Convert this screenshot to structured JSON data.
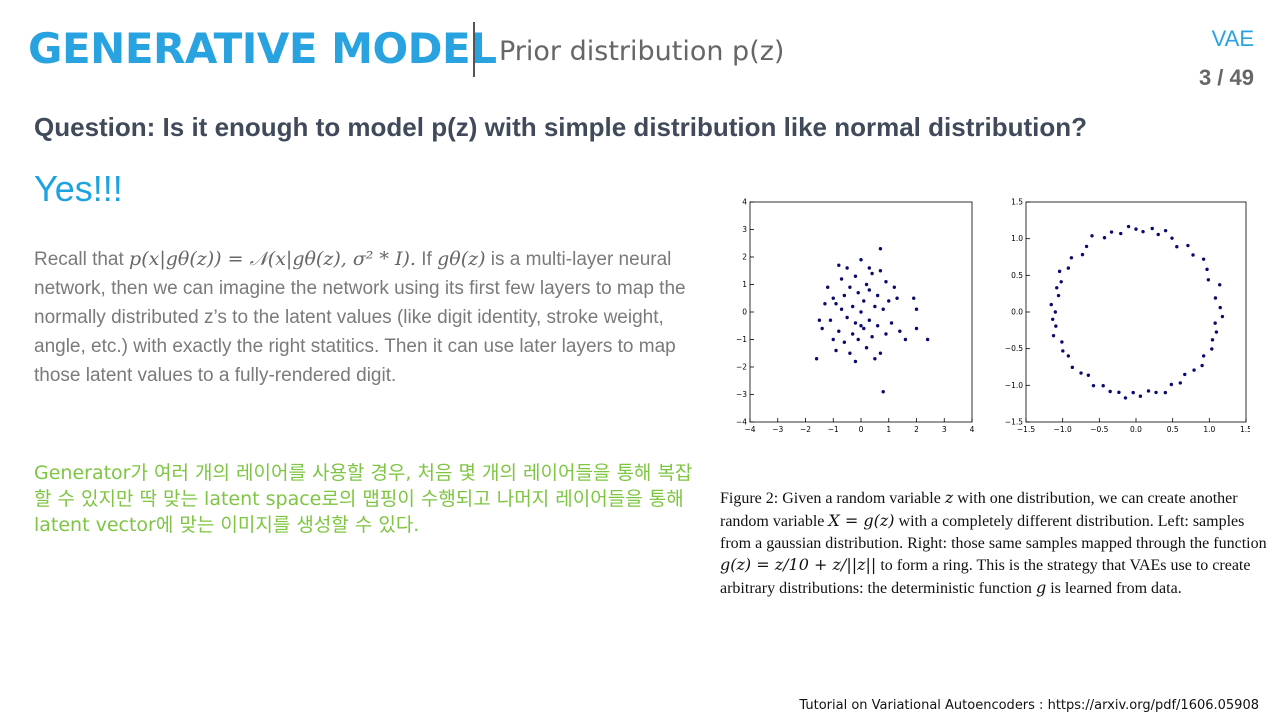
{
  "header": {
    "title": "GENERATIVE MODEL",
    "subtitle": "Prior distribution p(z)",
    "tag": "VAE",
    "page": "3 / 49"
  },
  "body": {
    "question": "Question: Is it enough to model p(z) with simple distribution like normal distribution?",
    "answer": "Yes!!!",
    "recall_prefix": "Recall that ",
    "recall_math1": "p(x|gθ(z)) = 𝒩(x|gθ(z), σ² * I).",
    "recall_if": " If ",
    "recall_math2": "gθ(z)",
    "recall_rest": " is a multi-layer neural network, then we can imagine the network using its first few layers to map the normally distributed z’s to the latent values (like digit identity, stroke weight, angle, etc.) with exactly the right statitics. Then it can use later layers to map those latent values to a fully-rendered digit.",
    "korean": "Generator가 여러 개의 레이어를 사용할 경우, 처음 몇 개의 레이어들을 통해 복잡할 수 있지만 딱 맞는 latent space로의 맵핑이 수행되고 나머지 레이어들을 통해 latent vector에 맞는 이미지를 생성할 수 있다."
  },
  "figure": {
    "caption_p1": "Figure 2: Given a random variable ",
    "caption_z": "z",
    "caption_p2": " with one distribution, we can create another random variable ",
    "caption_Xg": "X = g(z)",
    "caption_p3": " with a completely different distribution. Left: samples from a gaussian distribution. Right: those same samples mapped through the function ",
    "caption_fn": "g(z) = z/10 + z/||z||",
    "caption_p4": " to form a ring. This is the strategy that VAEs use to create arbitrary distributions: the deterministic function ",
    "caption_g": "g",
    "caption_p5": " is learned from data."
  },
  "chart_data": [
    {
      "type": "scatter",
      "title": "",
      "xlim": [
        -4,
        4
      ],
      "ylim": [
        -4,
        4
      ],
      "x_ticks": [
        -4,
        -3,
        -2,
        -1,
        0,
        1,
        2,
        3,
        4
      ],
      "y_ticks": [
        -4,
        -3,
        -2,
        -1,
        0,
        1,
        2,
        3,
        4
      ],
      "x_tick_labels": [
        "−4",
        "−3",
        "−2",
        "−1",
        "0",
        "1",
        "2",
        "3",
        "4"
      ],
      "y_tick_labels": [
        "−4",
        "−3",
        "−2",
        "−1",
        "0",
        "1",
        "2",
        "3",
        "4"
      ],
      "point_color": "#0a0a6e",
      "points": [
        [
          -1.6,
          -1.7
        ],
        [
          -1.4,
          -0.6
        ],
        [
          -1.3,
          0.3
        ],
        [
          -1.2,
          0.9
        ],
        [
          -1.1,
          -0.3
        ],
        [
          -1.0,
          0.5
        ],
        [
          -0.9,
          -1.4
        ],
        [
          -0.8,
          1.7
        ],
        [
          -0.8,
          -0.7
        ],
        [
          -0.7,
          0.1
        ],
        [
          -0.7,
          1.2
        ],
        [
          -0.6,
          -1.1
        ],
        [
          -0.6,
          0.6
        ],
        [
          -0.5,
          -0.2
        ],
        [
          -0.5,
          1.6
        ],
        [
          -0.4,
          -1.5
        ],
        [
          -0.4,
          0.9
        ],
        [
          -0.3,
          0.2
        ],
        [
          -0.3,
          -0.8
        ],
        [
          -0.2,
          1.3
        ],
        [
          -0.2,
          -0.4
        ],
        [
          -0.1,
          0.7
        ],
        [
          -0.1,
          -1.0
        ],
        [
          0.0,
          0.0
        ],
        [
          0.0,
          1.9
        ],
        [
          0.1,
          -0.6
        ],
        [
          0.1,
          0.4
        ],
        [
          0.2,
          -1.3
        ],
        [
          0.2,
          1.0
        ],
        [
          0.3,
          -0.3
        ],
        [
          0.3,
          0.8
        ],
        [
          0.4,
          -0.9
        ],
        [
          0.4,
          1.4
        ],
        [
          0.5,
          0.2
        ],
        [
          0.5,
          -1.7
        ],
        [
          0.6,
          0.6
        ],
        [
          0.6,
          -0.5
        ],
        [
          0.7,
          2.3
        ],
        [
          0.7,
          1.5
        ],
        [
          0.7,
          -1.5
        ],
        [
          0.8,
          0.1
        ],
        [
          0.8,
          -2.9
        ],
        [
          0.9,
          1.1
        ],
        [
          0.9,
          -0.8
        ],
        [
          1.0,
          0.4
        ],
        [
          1.1,
          -0.4
        ],
        [
          1.2,
          0.9
        ],
        [
          1.4,
          -0.7
        ],
        [
          1.6,
          -1.0
        ],
        [
          1.9,
          0.5
        ],
        [
          2.0,
          -0.6
        ],
        [
          2.0,
          0.1
        ],
        [
          2.4,
          -1.0
        ],
        [
          -1.5,
          -0.3
        ],
        [
          -0.9,
          0.3
        ],
        [
          -0.2,
          -1.8
        ],
        [
          0.3,
          1.6
        ],
        [
          1.3,
          0.5
        ],
        [
          -1.0,
          -1.0
        ],
        [
          0.0,
          -0.5
        ]
      ]
    },
    {
      "type": "scatter",
      "title": "",
      "xlim": [
        -1.5,
        1.5
      ],
      "ylim": [
        -1.5,
        1.5
      ],
      "x_ticks": [
        -1.5,
        -1.0,
        -0.5,
        0.0,
        0.5,
        1.0,
        1.5
      ],
      "y_ticks": [
        -1.5,
        -1.0,
        -0.5,
        0.0,
        0.5,
        1.0,
        1.5
      ],
      "x_tick_labels": [
        "−1.5",
        "−1.0",
        "−0.5",
        "0.0",
        "0.5",
        "1.0",
        "1.5"
      ],
      "y_tick_labels": [
        "−1.5",
        "−1.0",
        "−0.5",
        "0.0",
        "0.5",
        "1.0",
        "1.5"
      ],
      "point_color": "#0a0a6e",
      "ring_angles_deg": [
        3,
        10,
        18,
        24,
        31,
        38,
        45,
        52,
        58,
        64,
        70,
        74,
        79,
        85,
        90,
        95,
        101,
        107,
        113,
        120,
        127,
        133,
        140,
        147,
        152,
        158,
        163,
        168,
        175,
        180,
        185,
        190,
        196,
        202,
        208,
        213,
        221,
        228,
        233,
        240,
        246,
        252,
        258,
        263,
        268,
        273,
        279,
        284,
        290,
        296,
        302,
        308,
        315,
        321,
        327,
        334,
        340,
        346,
        352,
        357
      ],
      "ring_radii": [
        1.15,
        1.1,
        1.2,
        1.08,
        1.13,
        1.17,
        1.1,
        1.15,
        1.05,
        1.12,
        1.18,
        1.1,
        1.16,
        1.1,
        1.13,
        1.17,
        1.09,
        1.14,
        1.1,
        1.2,
        1.12,
        1.07,
        1.15,
        1.1,
        1.18,
        1.1,
        1.13,
        1.08,
        1.16,
        1.1,
        1.14,
        1.11,
        1.17,
        1.09,
        1.13,
        1.1,
        1.15,
        1.12,
        1.08,
        1.16,
        1.1,
        1.14,
        1.12,
        1.18,
        1.1,
        1.15,
        1.09,
        1.13,
        1.17,
        1.1,
        1.14,
        1.08,
        1.12,
        1.16,
        1.1,
        1.15,
        1.11,
        1.13,
        1.09,
        1.18
      ]
    }
  ],
  "footer": {
    "source": "Tutorial on Variational Autoencoders : https://arxiv.org/pdf/1606.05908"
  }
}
